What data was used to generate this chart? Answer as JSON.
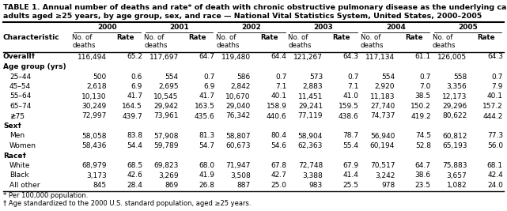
{
  "title_line1": "TABLE 1. Annual number of deaths and rate* of death with chronic obstructive pulmonary disease as the underlying cause among",
  "title_line2": "adults aged ≥25 years, by age group, sex, and race — National Vital Statistics System, United States, 2000–2005",
  "years": [
    "2000",
    "2001",
    "2002",
    "2003",
    "2004",
    "2005"
  ],
  "rows": [
    {
      "label": "Overall†",
      "bold": true,
      "section": false,
      "values": [
        "116,494",
        "65.2",
        "117,697",
        "64.7",
        "119,480",
        "64.4",
        "121,267",
        "64.3",
        "117,134",
        "61.1",
        "126,005",
        "64.3"
      ]
    },
    {
      "label": "Age group (yrs)",
      "bold": false,
      "section": true,
      "values": null
    },
    {
      "label": "25–44",
      "bold": false,
      "section": false,
      "values": [
        "500",
        "0.6",
        "554",
        "0.7",
        "586",
        "0.7",
        "573",
        "0.7",
        "554",
        "0.7",
        "558",
        "0.7"
      ]
    },
    {
      "label": "45–54",
      "bold": false,
      "section": false,
      "values": [
        "2,618",
        "6.9",
        "2,695",
        "6.9",
        "2,842",
        "7.1",
        "2,883",
        "7.1",
        "2,920",
        "7.0",
        "3,356",
        "7.9"
      ]
    },
    {
      "label": "55–64",
      "bold": false,
      "section": false,
      "values": [
        "10,130",
        "41.7",
        "10,545",
        "41.7",
        "10,670",
        "40.1",
        "11,451",
        "41.0",
        "11,183",
        "38.5",
        "12,173",
        "40.1"
      ]
    },
    {
      "label": "65–74",
      "bold": false,
      "section": false,
      "values": [
        "30,249",
        "164.5",
        "29,942",
        "163.5",
        "29,040",
        "158.9",
        "29,241",
        "159.5",
        "27,740",
        "150.2",
        "29,296",
        "157.2"
      ]
    },
    {
      "label": "≵75",
      "bold": false,
      "section": false,
      "values": [
        "72,997",
        "439.7",
        "73,961",
        "435.6",
        "76,342",
        "440.6",
        "77,119",
        "438.6",
        "74,737",
        "419.2",
        "80,622",
        "444.2"
      ]
    },
    {
      "label": "Sex†",
      "bold": false,
      "section": true,
      "values": null
    },
    {
      "label": "Men",
      "bold": false,
      "section": false,
      "values": [
        "58,058",
        "83.8",
        "57,908",
        "81.3",
        "58,807",
        "80.4",
        "58,904",
        "78.7",
        "56,940",
        "74.5",
        "60,812",
        "77.3"
      ]
    },
    {
      "label": "Women",
      "bold": false,
      "section": false,
      "values": [
        "58,436",
        "54.4",
        "59,789",
        "54.7",
        "60,673",
        "54.6",
        "62,363",
        "55.4",
        "60,194",
        "52.8",
        "65,193",
        "56.0"
      ]
    },
    {
      "label": "Race†",
      "bold": false,
      "section": true,
      "values": null
    },
    {
      "label": "White",
      "bold": false,
      "section": false,
      "values": [
        "68,979",
        "68.5",
        "69,823",
        "68.0",
        "71,947",
        "67.8",
        "72,748",
        "67.9",
        "70,517",
        "64.7",
        "75,883",
        "68.1"
      ]
    },
    {
      "label": "Black",
      "bold": false,
      "section": false,
      "values": [
        "3,173",
        "42.6",
        "3,269",
        "41.9",
        "3,508",
        "42.7",
        "3,388",
        "41.4",
        "3,242",
        "38.6",
        "3,657",
        "42.4"
      ]
    },
    {
      "label": "All other",
      "bold": false,
      "section": false,
      "values": [
        "845",
        "28.4",
        "869",
        "26.8",
        "887",
        "25.0",
        "983",
        "25.5",
        "978",
        "23.5",
        "1,082",
        "24.0"
      ]
    }
  ],
  "footnotes": [
    "* Per 100,000 population.",
    "† Age standardized to the 2000 U.S. standard population, aged ≥25 years."
  ],
  "bg_color": "#FFFFFF",
  "font_size": 6.5,
  "title_font_size": 6.8,
  "header_font_size": 6.5
}
